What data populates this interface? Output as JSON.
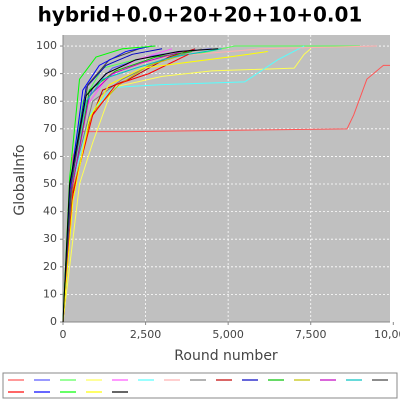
{
  "chart_data": {
    "type": "line",
    "title": "hybrid+0.0+20+20+10+0.01",
    "x_label": "Round number",
    "y_label": "GlobalInfo",
    "xlim": [
      0,
      9900
    ],
    "ylim": [
      0,
      104
    ],
    "xticks": [
      0,
      {
        "value": 2500,
        "label": "2,500"
      },
      {
        "value": 5000,
        "label": "5,000"
      },
      {
        "value": 7500,
        "label": "7,500"
      },
      {
        "value": 10000,
        "label": "10,000"
      }
    ],
    "yticks": [
      0,
      10,
      20,
      30,
      40,
      50,
      60,
      70,
      80,
      90,
      100
    ],
    "grid": true,
    "legend": "bottom",
    "background": "#c0c0c0",
    "series": [
      {
        "color": "#ff5555",
        "x": [
          0,
          300,
          600,
          2000,
          8600,
          8800,
          9200,
          9700,
          9900
        ],
        "values": [
          0,
          60,
          69,
          69,
          70,
          75,
          88,
          93,
          93
        ]
      },
      {
        "color": "#5555ff",
        "x": [
          0,
          200,
          500,
          900,
          1500,
          2500,
          3500,
          4500
        ],
        "values": [
          0,
          45,
          70,
          85,
          92,
          96,
          98,
          99
        ]
      },
      {
        "color": "#55ff55",
        "x": [
          0,
          200,
          600,
          1200,
          2500,
          4000,
          5200,
          9000
        ],
        "values": [
          0,
          50,
          80,
          92,
          96,
          97,
          100,
          100
        ]
      },
      {
        "color": "#ffff55",
        "x": [
          0,
          500,
          900,
          1500,
          3000,
          4500,
          7000,
          7300,
          7500
        ],
        "values": [
          0,
          50,
          65,
          85,
          89,
          91,
          92,
          97,
          99
        ]
      },
      {
        "color": "#ff55ff",
        "x": [
          0,
          250,
          700,
          1300,
          2200,
          3300
        ],
        "values": [
          0,
          48,
          78,
          88,
          95,
          99
        ]
      },
      {
        "color": "#55ffff",
        "x": [
          0,
          300,
          800,
          1500,
          3000,
          5500,
          6500,
          7300
        ],
        "values": [
          0,
          50,
          75,
          85,
          86,
          87,
          95,
          100
        ]
      },
      {
        "color": "#ffafaf",
        "x": [
          0,
          250,
          700,
          1400,
          3000,
          6000,
          9500
        ],
        "values": [
          0,
          45,
          80,
          90,
          96,
          99,
          100
        ]
      },
      {
        "color": "#808080",
        "x": [
          0,
          300,
          900,
          1800,
          3000,
          4200
        ],
        "values": [
          0,
          52,
          80,
          88,
          95,
          99
        ]
      },
      {
        "color": "#c00000",
        "x": [
          0,
          300,
          800,
          1200,
          2000,
          3200,
          4000
        ],
        "values": [
          0,
          46,
          72,
          84,
          88,
          96,
          99
        ]
      },
      {
        "color": "#0000c0",
        "x": [
          0,
          200,
          700,
          1300,
          2100,
          3000
        ],
        "values": [
          0,
          48,
          85,
          93,
          97,
          99
        ]
      },
      {
        "color": "#00c000",
        "x": [
          0,
          300,
          800,
          1600,
          2800,
          3900
        ],
        "values": [
          0,
          50,
          84,
          91,
          96,
          98
        ]
      },
      {
        "color": "#c0c000",
        "x": [
          0,
          300,
          900,
          1700,
          2600,
          3700
        ],
        "values": [
          0,
          48,
          76,
          86,
          93,
          97
        ]
      },
      {
        "color": "#c000c0",
        "x": [
          0,
          250,
          800,
          1500,
          2400,
          3600
        ],
        "values": [
          0,
          47,
          82,
          90,
          94,
          98
        ]
      },
      {
        "color": "#00c0c0",
        "x": [
          0,
          250,
          700,
          1200,
          2200,
          3300,
          4800
        ],
        "values": [
          0,
          50,
          80,
          88,
          92,
          96,
          99
        ]
      },
      {
        "color": "#404040",
        "x": [
          0,
          250,
          750,
          1400,
          2300
        ],
        "values": [
          0,
          50,
          86,
          95,
          99
        ]
      },
      {
        "color": "#ff0000",
        "x": [
          0,
          300,
          900,
          1600,
          2600,
          3800
        ],
        "values": [
          0,
          47,
          75,
          86,
          90,
          97
        ]
      },
      {
        "color": "#0000ff",
        "x": [
          0,
          200,
          600,
          1100,
          1900,
          2700
        ],
        "values": [
          0,
          48,
          84,
          93,
          98,
          100
        ]
      },
      {
        "color": "#00ff00",
        "x": [
          0,
          200,
          500,
          1000,
          1800,
          2800
        ],
        "values": [
          0,
          52,
          88,
          96,
          99,
          100
        ]
      },
      {
        "color": "#ffff00",
        "x": [
          0,
          300,
          800,
          1400,
          2400,
          5000,
          6200
        ],
        "values": [
          0,
          44,
          74,
          86,
          92,
          96,
          98
        ]
      },
      {
        "color": "#000000",
        "x": [
          0,
          200,
          700,
          1300,
          2200,
          3500,
          4700
        ],
        "values": [
          0,
          50,
          82,
          90,
          95,
          98,
          99
        ]
      }
    ]
  }
}
